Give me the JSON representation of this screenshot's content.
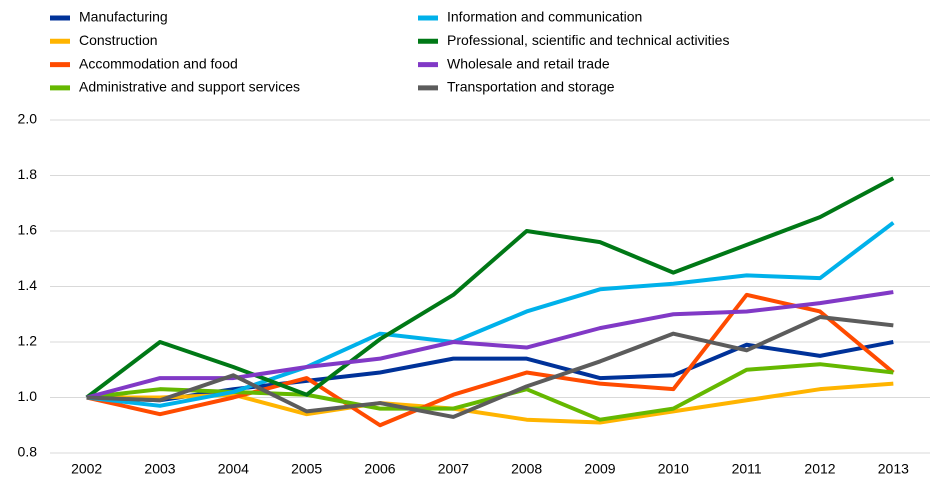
{
  "chart_data": {
    "type": "line",
    "x": [
      "2002",
      "2003",
      "2004",
      "2005",
      "2006",
      "2007",
      "2008",
      "2009",
      "2010",
      "2011",
      "2012",
      "2013"
    ],
    "ylim": [
      0.8,
      2.0
    ],
    "yticks": [
      0.8,
      {
        "value": 1.0,
        "label": "1.0"
      },
      1.2,
      1.4,
      1.6,
      1.8,
      {
        "value": 2.0,
        "label": "2.0"
      }
    ],
    "grid": true,
    "series": [
      {
        "name": "Manufacturing",
        "color": "#003299",
        "values": [
          1.0,
          0.99,
          1.03,
          1.06,
          1.09,
          1.14,
          1.14,
          1.07,
          1.08,
          1.19,
          1.15,
          1.2
        ]
      },
      {
        "name": "Construction",
        "color": "#ffb400",
        "values": [
          1.0,
          1.0,
          1.01,
          0.94,
          0.98,
          0.96,
          0.92,
          0.91,
          0.95,
          0.99,
          1.03,
          1.05
        ]
      },
      {
        "name": "Accommodation and food",
        "color": "#ff4b00",
        "values": [
          1.0,
          0.94,
          1.0,
          1.07,
          0.9,
          1.01,
          1.09,
          1.05,
          1.03,
          1.37,
          1.31,
          1.09
        ]
      },
      {
        "name": "Administrative and support services",
        "color": "#65b800",
        "values": [
          1.0,
          1.03,
          1.02,
          1.01,
          0.96,
          0.96,
          1.03,
          0.92,
          0.96,
          1.1,
          1.12,
          1.09
        ]
      },
      {
        "name": "Information and communication",
        "color": "#00b1ea",
        "values": [
          1.0,
          0.97,
          1.02,
          1.11,
          1.23,
          1.2,
          1.31,
          1.39,
          1.41,
          1.44,
          1.43,
          1.63
        ]
      },
      {
        "name": "Professional, scientific and technical activities",
        "color": "#007816",
        "values": [
          1.0,
          1.2,
          1.11,
          1.01,
          1.21,
          1.37,
          1.6,
          1.56,
          1.45,
          1.55,
          1.65,
          1.79
        ]
      },
      {
        "name": "Wholesale and retail trade",
        "color": "#8139c6",
        "values": [
          1.0,
          1.07,
          1.07,
          1.11,
          1.14,
          1.2,
          1.18,
          1.25,
          1.3,
          1.31,
          1.34,
          1.38
        ]
      },
      {
        "name": "Transportation and storage",
        "color": "#5c5c5c",
        "values": [
          1.0,
          0.99,
          1.08,
          0.95,
          0.98,
          0.93,
          1.04,
          1.13,
          1.23,
          1.17,
          1.29,
          1.26
        ]
      }
    ]
  }
}
